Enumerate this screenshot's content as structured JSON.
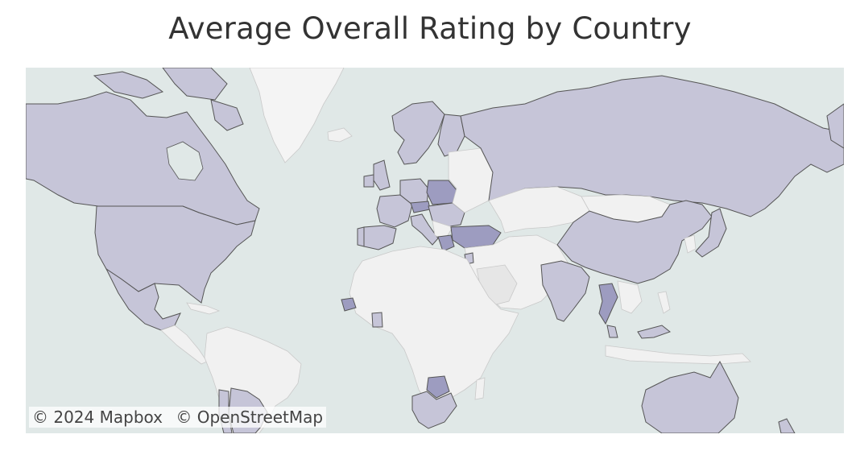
{
  "title": "Average Overall Rating by Country",
  "colors": {
    "ocean": "#e0e8e7",
    "no_data": "#f1f1f1",
    "rated_light": "#c6c5d8",
    "rated_dark": "#9d9cc0",
    "border": "#555555",
    "greenland": "#f4f4f4"
  },
  "attribution": {
    "mapbox": "© 2024 Mapbox",
    "osm": "© OpenStreetMap"
  },
  "countries_rated": [
    "Canada",
    "United States",
    "Mexico",
    "Argentina",
    "Chile",
    "United Kingdom",
    "Ireland",
    "France",
    "Spain",
    "Portugal",
    "Germany",
    "Netherlands",
    "Belgium",
    "Italy",
    "Sweden",
    "Norway",
    "Finland",
    "Poland",
    "Czechia",
    "Austria",
    "Hungary",
    "Romania",
    "Greece",
    "Turkey",
    "Jordan",
    "Russia",
    "China",
    "India",
    "Thailand",
    "Malaysia",
    "Australia",
    "Senegal",
    "Ghana",
    "South Africa",
    "Botswana",
    "Saudi Arabia"
  ],
  "countries_highlighted": [
    "Poland",
    "Czechia",
    "Turkey",
    "Senegal",
    "Thailand",
    "Botswana",
    "Greece"
  ]
}
